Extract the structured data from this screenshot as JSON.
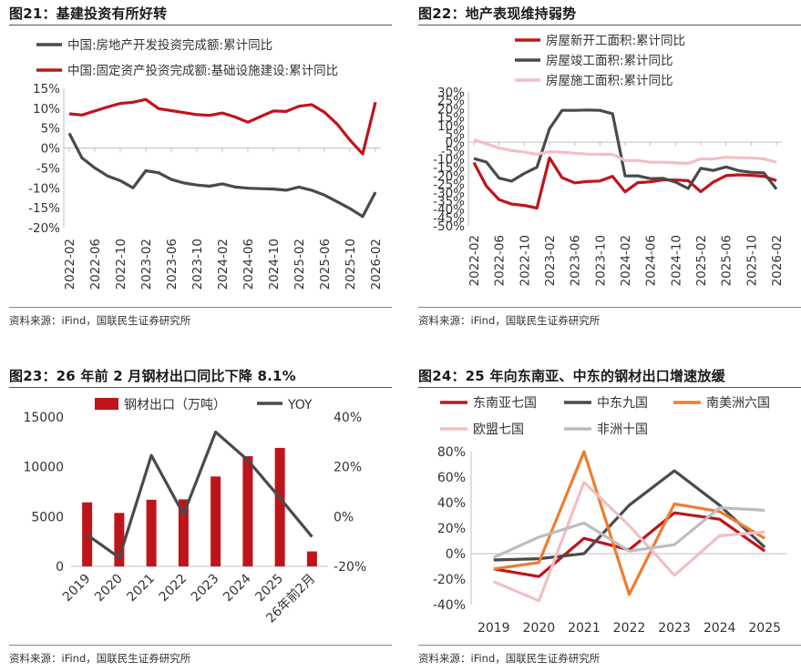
{
  "source_text": "资料来源：iFind，国联民生证券研究所",
  "chart_data": [
    {
      "type": "line",
      "title": "图21：基建投资有所好转",
      "legend_position": "top-left",
      "x": [
        "2022-02",
        "2022-04",
        "2022-06",
        "2022-08",
        "2022-10",
        "2022-12",
        "2023-02",
        "2023-04",
        "2023-06",
        "2023-08",
        "2023-10",
        "2023-12",
        "2024-02",
        "2024-04",
        "2024-06",
        "2024-08",
        "2024-10",
        "2024-12",
        "2025-02",
        "2025-04",
        "2025-06",
        "2025-08",
        "2025-10",
        "2025-12",
        "2026-02"
      ],
      "tick_labels": [
        "2022-02",
        "2022-06",
        "2022-10",
        "2023-02",
        "2023-06",
        "2023-10",
        "2024-02",
        "2024-06",
        "2024-10",
        "2025-02",
        "2025-06",
        "2025-10",
        "2026-02"
      ],
      "yticks": [
        15,
        10,
        5,
        0,
        -5,
        -10,
        -15,
        -20
      ],
      "yticklabels": [
        "15%",
        "10%",
        "5%",
        "0%",
        "-5%",
        "-10%",
        "-15%",
        "-20%"
      ],
      "ylim": [
        -20,
        15
      ],
      "series": [
        {
          "name": "中国:房地产开发投资完成额:累计同比",
          "color": "#4a4a4a",
          "values": [
            3.7,
            -2.5,
            -5.0,
            -7.0,
            -8.2,
            -10.0,
            -5.7,
            -6.2,
            -7.9,
            -8.8,
            -9.3,
            -9.6,
            -9.0,
            -9.8,
            -10.1,
            -10.2,
            -10.3,
            -10.6,
            -9.8,
            -10.6,
            -11.8,
            -13.5,
            -15.2,
            -17.2,
            -11.1
          ]
        },
        {
          "name": "中国:固定资产投资完成额:基础设施建设:累计同比",
          "color": "#c0141b",
          "values": [
            8.6,
            8.3,
            9.3,
            10.3,
            11.2,
            11.5,
            12.2,
            9.9,
            9.4,
            8.9,
            8.4,
            8.2,
            8.8,
            7.8,
            6.5,
            7.9,
            9.3,
            9.2,
            10.5,
            10.9,
            9.0,
            6.0,
            2.0,
            -1.5,
            11.5
          ]
        }
      ]
    },
    {
      "type": "line",
      "title": "图22：地产表现维持弱势",
      "legend_position": "top-right",
      "x": [
        "2022-02",
        "2022-04",
        "2022-06",
        "2022-08",
        "2022-10",
        "2022-12",
        "2023-02",
        "2023-04",
        "2023-06",
        "2023-08",
        "2023-10",
        "2023-12",
        "2024-02",
        "2024-04",
        "2024-06",
        "2024-08",
        "2024-10",
        "2024-12",
        "2025-02",
        "2025-04",
        "2025-06",
        "2025-08",
        "2025-10",
        "2025-12",
        "2026-02"
      ],
      "tick_labels": [
        "2022-02",
        "2022-06",
        "2022-10",
        "2023-02",
        "2023-06",
        "2023-10",
        "2024-02",
        "2024-06",
        "2024-10",
        "2025-02",
        "2025-06",
        "2025-10",
        "2026-02"
      ],
      "yticks": [
        30,
        25,
        20,
        15,
        10,
        5,
        0,
        -5,
        -10,
        -15,
        -20,
        -25,
        -30,
        -35,
        -40,
        -45,
        -50
      ],
      "yticklabels": [
        "30%",
        "25%",
        "20%",
        "15%",
        "10%",
        "5%",
        "0%",
        "-5%",
        "-10%",
        "-15%",
        "-20%",
        "-25%",
        "-30%",
        "-35%",
        "-40%",
        "-45%",
        "-50%"
      ],
      "ylim": [
        -50,
        30
      ],
      "series": [
        {
          "name": "房屋新开工面积:累计同比",
          "color": "#c0141b",
          "values": [
            -12.2,
            -26.3,
            -34.4,
            -37.0,
            -37.8,
            -39.4,
            -9.4,
            -21.2,
            -24.3,
            -23.5,
            -23.2,
            -20.4,
            -29.7,
            -24.2,
            -23.7,
            -22.5,
            -22.6,
            -23.0,
            -29.6,
            -23.8,
            -20.0,
            -19.5,
            -19.8,
            -20.4,
            -23.0
          ]
        },
        {
          "name": "房屋竣工面积:累计同比",
          "color": "#4a4a4a",
          "values": [
            -9.8,
            -11.9,
            -21.5,
            -23.3,
            -18.7,
            -15.0,
            8.0,
            19.0,
            19.0,
            19.2,
            19.0,
            17.0,
            -20.2,
            -20.1,
            -21.8,
            -21.6,
            -23.9,
            -27.7,
            -15.6,
            -16.9,
            -14.8,
            -17.0,
            -18.0,
            -18.3,
            -28.0
          ]
        },
        {
          "name": "房屋施工面积:累计同比",
          "color": "#f2bfc4",
          "values": [
            1.5,
            -1.0,
            -3.5,
            -5.0,
            -6.0,
            -7.2,
            -5.7,
            -6.0,
            -6.6,
            -7.1,
            -7.3,
            -7.2,
            -11.0,
            -11.0,
            -12.0,
            -12.0,
            -12.4,
            -12.7,
            -10.0,
            -10.0,
            -9.0,
            -9.3,
            -9.4,
            -10.0,
            -12.0
          ]
        }
      ]
    },
    {
      "type": "bar",
      "title": "图23：26 年前 2 月钢材出口同比下降 8.1%",
      "legend_position": "top",
      "categories": [
        "2019",
        "2020",
        "2021",
        "2022",
        "2023",
        "2024",
        "2025",
        "26年前2月"
      ],
      "left_axis": {
        "ylim": [
          0,
          15000
        ],
        "yticks": [
          0,
          5000,
          10000,
          15000
        ],
        "yticklabels": [
          "0",
          "5000",
          "10000",
          "15000"
        ]
      },
      "right_axis": {
        "ylim": [
          -20,
          40
        ],
        "yticks": [
          -20,
          0,
          20,
          40
        ],
        "yticklabels": [
          "-20%",
          "0%",
          "20%",
          "40%"
        ]
      },
      "series": [
        {
          "name": "钢材出口（万吨）",
          "type": "bar",
          "axis": "left",
          "color": "#c0141b",
          "values": [
            6429,
            5367,
            6690,
            6732,
            9026,
            11072,
            11900,
            1500
          ]
        },
        {
          "name": "YOY",
          "type": "line",
          "axis": "right",
          "color": "#4a4a4a",
          "values": [
            -7.3,
            -16.5,
            24.6,
            0.9,
            34.0,
            22.7,
            7.5,
            -8.1
          ]
        }
      ]
    },
    {
      "type": "line",
      "title": "图24：25 年向东南亚、中东的钢材出口增速放缓",
      "legend_position": "top",
      "x": [
        "2019",
        "2020",
        "2021",
        "2022",
        "2023",
        "2024",
        "2025"
      ],
      "yticks": [
        80,
        60,
        40,
        20,
        0,
        -20,
        -40
      ],
      "yticklabels": [
        "80%",
        "60%",
        "40%",
        "20%",
        "0%",
        "-20%",
        "-40%"
      ],
      "ylim": [
        -40,
        80
      ],
      "series": [
        {
          "name": "东南亚七国",
          "color": "#c0141b",
          "values": [
            -12,
            -18,
            12,
            3,
            32,
            27,
            2
          ]
        },
        {
          "name": "中东九国",
          "color": "#4a4a4a",
          "values": [
            -5,
            -4,
            0,
            38,
            65,
            38,
            5
          ]
        },
        {
          "name": "南美洲六国",
          "color": "#ed7d31",
          "values": [
            -12,
            -7,
            80,
            -32,
            39,
            33,
            12
          ]
        },
        {
          "name": "欧盟七国",
          "color": "#f2bfc4",
          "values": [
            -22,
            -37,
            56,
            22,
            -17,
            14,
            17
          ]
        },
        {
          "name": "非洲十国",
          "color": "#bdbdbd",
          "values": [
            -3,
            13,
            24,
            2,
            7,
            36,
            34
          ]
        }
      ]
    }
  ]
}
